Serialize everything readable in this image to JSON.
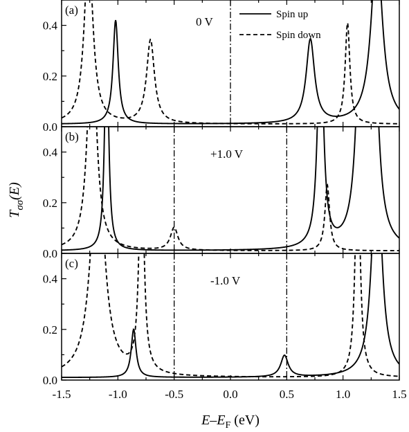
{
  "chart_data": {
    "type": "line",
    "xlabel": {
      "main": "E",
      "dash": "–",
      "sub_main": "E",
      "sub": "F",
      "unit": "(eV)"
    },
    "ylabel": {
      "main": "T",
      "sub": "σσ",
      "arg": "(E)"
    },
    "xlim": [
      -1.5,
      1.5
    ],
    "ylim": [
      0.0,
      0.5
    ],
    "x_ticks": [
      -1.5,
      -1.0,
      -0.5,
      0.0,
      0.5,
      1.0,
      1.5
    ],
    "x_tick_labels": [
      "-1.5",
      "-1.0",
      "-0.5",
      "0.0",
      "0.5",
      "1.0",
      "1.5"
    ],
    "y_ticks": [
      0.0,
      0.2,
      0.4
    ],
    "y_tick_labels": [
      "0.0",
      "0.2",
      "0.4"
    ],
    "legend": {
      "placement": "top-right of panel (a)",
      "entries": [
        {
          "label": "Spin up",
          "style": "solid"
        },
        {
          "label": "Spin down",
          "style": "dashed"
        }
      ]
    },
    "panels": [
      {
        "label": "(a)",
        "bias": "0 V",
        "vlines": [
          0.0
        ],
        "series": [
          {
            "style": "solid",
            "peaks": [
              {
                "x": -1.02,
                "h": 0.41,
                "w": 0.028
              },
              {
                "x": 0.71,
                "h": 0.33,
                "w": 0.045
              },
              {
                "x": 1.3,
                "h": 0.7,
                "w": 0.06
              }
            ]
          },
          {
            "style": "dashed",
            "peaks": [
              {
                "x": -1.26,
                "h": 0.7,
                "w": 0.045
              },
              {
                "x": -0.71,
                "h": 0.33,
                "w": 0.042
              },
              {
                "x": 1.04,
                "h": 0.4,
                "w": 0.025
              }
            ]
          }
        ]
      },
      {
        "label": "(b)",
        "bias": "+1.0 V",
        "vlines": [
          -0.5,
          0.5
        ],
        "series": [
          {
            "style": "solid",
            "peaks": [
              {
                "x": -1.1,
                "h": 0.9,
                "w": 0.02
              },
              {
                "x": 0.8,
                "h": 0.9,
                "w": 0.03
              },
              {
                "x": 1.16,
                "h": 0.9,
                "w": 0.045
              },
              {
                "x": 1.27,
                "h": 0.9,
                "w": 0.045
              }
            ]
          },
          {
            "style": "dashed",
            "peaks": [
              {
                "x": -1.23,
                "h": 0.9,
                "w": 0.045
              },
              {
                "x": -0.5,
                "h": 0.09,
                "w": 0.04
              },
              {
                "x": 0.86,
                "h": 0.26,
                "w": 0.025
              }
            ]
          }
        ]
      },
      {
        "label": "(c)",
        "bias": "-1.0 V",
        "vlines": [
          -0.5,
          0.5
        ],
        "series": [
          {
            "style": "solid",
            "peaks": [
              {
                "x": -0.86,
                "h": 0.19,
                "w": 0.026
              },
              {
                "x": 0.48,
                "h": 0.085,
                "w": 0.04
              },
              {
                "x": 1.3,
                "h": 0.9,
                "w": 0.05
              }
            ]
          },
          {
            "style": "dashed",
            "peaks": [
              {
                "x": -1.18,
                "h": 0.9,
                "w": 0.07
              },
              {
                "x": -0.79,
                "h": 0.9,
                "w": 0.025
              },
              {
                "x": 1.13,
                "h": 0.9,
                "w": 0.025
              }
            ]
          }
        ]
      }
    ]
  }
}
